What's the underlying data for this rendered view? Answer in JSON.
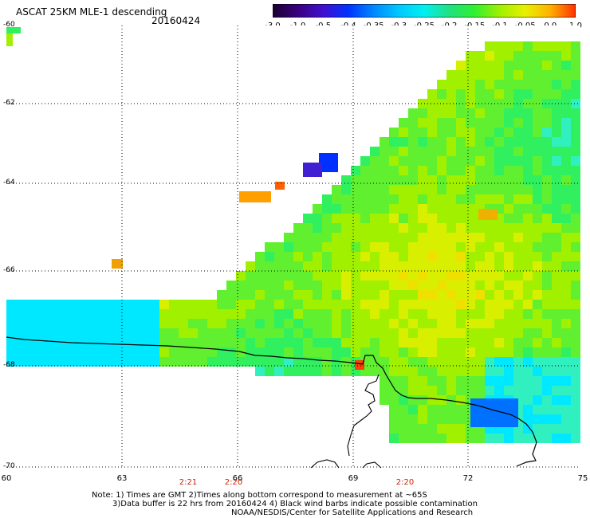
{
  "title": "ASCAT 25KM MLE-1 descending",
  "date": "20160424",
  "colorbar": {
    "labels": [
      "-3.0",
      "-1.0",
      "-0.5",
      "-0.4",
      "-0.35",
      "-0.3",
      "-0.25",
      "-0.2",
      "-0.15",
      "-0.1",
      "-0.05",
      "0.0",
      "1.0"
    ],
    "colors": [
      "#1a0030",
      "#3a0080",
      "#4010d0",
      "#0033ff",
      "#0088ff",
      "#00c8ff",
      "#00f0f0",
      "#20e080",
      "#30f030",
      "#a0f000",
      "#e8f000",
      "#ffb000",
      "#ff3000"
    ]
  },
  "lat_labels": [
    "-60",
    "-62",
    "-64",
    "-66",
    "-68",
    "-70"
  ],
  "lon_labels": [
    "60",
    "63",
    "66",
    "69",
    "72",
    "75"
  ],
  "time_labels": [
    "2:21",
    "2:20",
    "2:20"
  ],
  "notes": {
    "line1": "Note: 1) Times are GMT 2)Times along bottom correspond to measurement at ~65S",
    "line2": "3)Data buffer is 22 hrs from 20160424 4) Black wind barbs indicate possible contamination",
    "line3": "NOAA/NESDIS/Center for Satellite Applications and Research"
  }
}
